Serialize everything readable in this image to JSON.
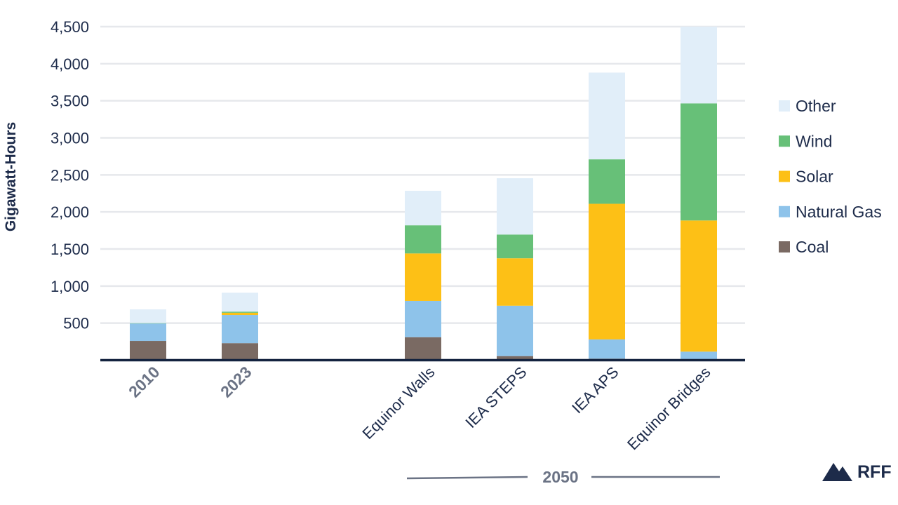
{
  "chart_data": {
    "type": "bar",
    "stacked": true,
    "ylabel": "Gigawatt-Hours",
    "ylim": [
      0,
      4500
    ],
    "yticks": [
      500,
      1000,
      1500,
      2000,
      2500,
      3000,
      3500,
      4000,
      4500
    ],
    "ytick_labels": [
      "500",
      "1,000",
      "1,500",
      "2,000",
      "2,500",
      "3,000",
      "3,500",
      "4,000",
      "4,500"
    ],
    "grid": true,
    "legend_position": "right",
    "categories": [
      "2010",
      "2023",
      "Equinor Walls",
      "IEA STEPS",
      "IEA APS",
      "Equinor Bridges"
    ],
    "bold_categories": [
      "2010",
      "2023"
    ],
    "group_label": "2050",
    "grouped_categories": [
      "Equinor Walls",
      "IEA STEPS",
      "IEA APS",
      "Equinor Bridges"
    ],
    "series": [
      {
        "name": "Coal",
        "color": "#7a6a63",
        "values": [
          260,
          230,
          310,
          55,
          20,
          0
        ]
      },
      {
        "name": "Natural Gas",
        "color": "#8ec3ea",
        "values": [
          235,
          380,
          490,
          680,
          260,
          115
        ]
      },
      {
        "name": "Solar",
        "color": "#fdc016",
        "values": [
          0,
          30,
          640,
          640,
          1830,
          1770
        ]
      },
      {
        "name": "Wind",
        "color": "#67c078",
        "values": [
          5,
          15,
          380,
          320,
          600,
          1580
        ]
      },
      {
        "name": "Other",
        "color": "#e1eef9",
        "values": [
          185,
          255,
          465,
          760,
          1170,
          1035
        ]
      }
    ],
    "legend_order": [
      "Other",
      "Wind",
      "Solar",
      "Natural Gas",
      "Coal"
    ]
  },
  "brand": {
    "name": "RFF"
  }
}
